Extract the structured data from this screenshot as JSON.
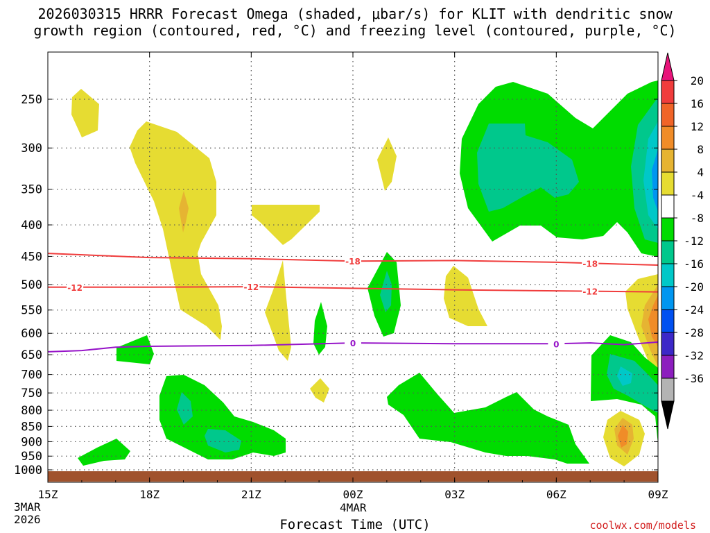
{
  "chart_data": {
    "type": "heatmap",
    "title_line1": "2026030315 HRRR Forecast Omega (shaded, μbar/s) for KLIT with dendritic snow",
    "title_line2": "growth region (contoured, red, °C) and freezing level (contoured, purple, °C)",
    "xlabel": "Forecast Time (UTC)",
    "x_hours": [
      15,
      18,
      21,
      24,
      27,
      30,
      33
    ],
    "x_tick_labels": [
      "15Z",
      "18Z",
      "21Z",
      "00Z",
      "03Z",
      "06Z",
      "09Z"
    ],
    "start_date_lines": [
      "3MAR",
      "2026"
    ],
    "midnight_date": "4MAR",
    "y_ticks": [
      250,
      300,
      350,
      400,
      450,
      500,
      550,
      600,
      650,
      700,
      750,
      800,
      850,
      900,
      950,
      1000
    ],
    "y_range_hpa": [
      1040,
      200
    ],
    "colorbar_labels": [
      "20",
      "16",
      "12",
      "8",
      "4",
      "-4",
      "-8",
      "-12",
      "-16",
      "-20",
      "-24",
      "-28",
      "-32",
      "-36"
    ],
    "colorbar_colors": [
      "#e8147a",
      "#f03c3c",
      "#f06428",
      "#f08c28",
      "#e6b432",
      "#e6dc32",
      "#ffffff",
      "#00dc00",
      "#00c88c",
      "#00c8c8",
      "#0096f0",
      "#0050f0",
      "#3c28c8",
      "#8c1ebe",
      "#b4b4b4",
      "#000000"
    ],
    "shaded_colors": {
      "yellow": "#e6dc32",
      "orange": "#e6b432",
      "darkorange": "#f08c28",
      "green": "#00dc00",
      "teal": "#00c88c",
      "cyan": "#00c8c8",
      "blue": "#0096f0"
    },
    "contours": [
      {
        "name": "-18 C",
        "color": "#f03c3c",
        "label": "-18",
        "points": [
          [
            15,
            445
          ],
          [
            18,
            452
          ],
          [
            21,
            454
          ],
          [
            24,
            458
          ],
          [
            27,
            457
          ],
          [
            30,
            460
          ],
          [
            33,
            465
          ]
        ]
      },
      {
        "name": "-12 C",
        "color": "#f03c3c",
        "label": "-12",
        "points": [
          [
            15,
            505
          ],
          [
            18,
            505
          ],
          [
            21,
            504
          ],
          [
            24,
            507
          ],
          [
            27,
            510
          ],
          [
            30,
            512
          ],
          [
            33,
            514
          ]
        ]
      },
      {
        "name": "freezing level 0 C",
        "color": "#9614c8",
        "label": "0",
        "points": [
          [
            15,
            643
          ],
          [
            16,
            640
          ],
          [
            17,
            632
          ],
          [
            18,
            630
          ],
          [
            21,
            628
          ],
          [
            24,
            622
          ],
          [
            27,
            624
          ],
          [
            30,
            624
          ],
          [
            31,
            622
          ],
          [
            32,
            626
          ],
          [
            33,
            620
          ]
        ]
      }
    ],
    "terrain_color": "#a0522d",
    "credit": "coolwx.com/models"
  }
}
